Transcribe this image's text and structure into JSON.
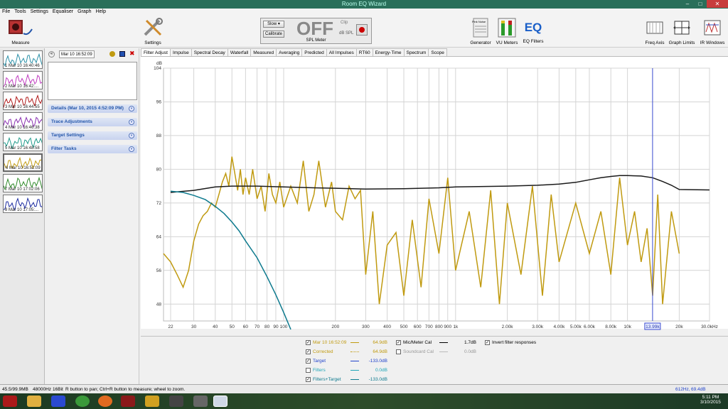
{
  "window": {
    "title": "Room EQ Wizard"
  },
  "menu": [
    "File",
    "Tools",
    "Settings",
    "Equaliser",
    "Graph",
    "Help"
  ],
  "toolbar": {
    "measure": "Measure",
    "settings": "Settings",
    "spl_speed": "Slow",
    "calibrate": "Calibrate",
    "spl_value": "OFF",
    "spl_clip": "Clip",
    "spl_unit": "dB SPL",
    "spl_meter": "SPL Meter",
    "generator": "Generator",
    "vu": "VU Meters",
    "eq": "EQ Filters",
    "freq_axis": "Freq Axis",
    "graph_limits": "Graph Limits",
    "ir_windows": "IR Windows",
    "generator_badge": "Pink Noise",
    "eq_badge": "EQ"
  },
  "measurements": [
    {
      "label": "1 Mar 10 16:40:46",
      "color": "#2a90a8"
    },
    {
      "label": "2 Mar 10 16:42:...",
      "color": "#c03cc0"
    },
    {
      "label": "3 Mar 10 16:44:55",
      "color": "#b01818"
    },
    {
      "label": "4 Mar 10 16:46:38",
      "color": "#8a30b0"
    },
    {
      "label": "5 Mar 10 16:48:58",
      "color": "#1f9a8a"
    },
    {
      "label": "6 Mar 10 16:52:09",
      "color": "#c09a10"
    },
    {
      "label": "7 Mar 10 17:02:06",
      "color": "#2f8a2a"
    },
    {
      "label": "8 Mar 10 17:05:...",
      "color": "#1a2aa0"
    }
  ],
  "panel": {
    "name_value": "Mar 10 16:52:09",
    "sections": [
      "Details  (Mar 10, 2015 4:52:09 PM)",
      "Trace Adjustments",
      "Target Settings",
      "Filter Tasks"
    ]
  },
  "tabs": [
    "Filter Adjust",
    "Impulse",
    "Spectral Decay",
    "Waterfall",
    "Measured",
    "Averaging",
    "Predicted",
    "All Impulses",
    "RT60",
    "Energy-Time",
    "Spectrum",
    "Scope"
  ],
  "chart_data": {
    "type": "line",
    "ylabel": "dB",
    "ylim": [
      44,
      104
    ],
    "yticks": [
      104,
      96,
      88,
      80,
      72,
      64,
      56,
      48
    ],
    "xscale": "log",
    "xlim": [
      20,
      30000
    ],
    "xticks": [
      {
        "v": 22,
        "l": "22"
      },
      {
        "v": 30,
        "l": "30"
      },
      {
        "v": 40,
        "l": "40"
      },
      {
        "v": 50,
        "l": "50"
      },
      {
        "v": 60,
        "l": "60"
      },
      {
        "v": 70,
        "l": "70"
      },
      {
        "v": 80,
        "l": "80"
      },
      {
        "v": 90,
        "l": "90"
      },
      {
        "v": 100,
        "l": "100"
      },
      {
        "v": 200,
        "l": "200"
      },
      {
        "v": 300,
        "l": "300"
      },
      {
        "v": 400,
        "l": "400"
      },
      {
        "v": 500,
        "l": "500"
      },
      {
        "v": 600,
        "l": "600"
      },
      {
        "v": 700,
        "l": "700"
      },
      {
        "v": 800,
        "l": "800"
      },
      {
        "v": 900,
        "l": "900"
      },
      {
        "v": 1000,
        "l": "1k"
      },
      {
        "v": 2000,
        "l": "2.00k"
      },
      {
        "v": 3000,
        "l": "3.00k"
      },
      {
        "v": 4000,
        "l": "4.00k"
      },
      {
        "v": 5000,
        "l": "5.00k"
      },
      {
        "v": 6000,
        "l": "6.00k"
      },
      {
        "v": 8000,
        "l": "8.00k"
      },
      {
        "v": 10000,
        "l": "10k"
      },
      {
        "v": 20000,
        "l": "20k"
      },
      {
        "v": 30000,
        "l": "30.0kHz"
      }
    ],
    "cursor": {
      "x": 13990,
      "label": "13.99k"
    },
    "series": [
      {
        "name": "Mar 10 16:52:09",
        "color": "#c09a10",
        "x": [
          20,
          22,
          24,
          26,
          28,
          30,
          32,
          34,
          36,
          38,
          40,
          42,
          44,
          46,
          48,
          50,
          52,
          54,
          56,
          58,
          60,
          63,
          66,
          70,
          74,
          78,
          82,
          86,
          90,
          95,
          100,
          110,
          120,
          130,
          140,
          150,
          160,
          175,
          190,
          200,
          220,
          240,
          260,
          280,
          300,
          330,
          360,
          400,
          450,
          500,
          560,
          630,
          700,
          800,
          900,
          1000,
          1200,
          1400,
          1600,
          1800,
          2000,
          2400,
          2800,
          3200,
          3600,
          4000,
          5000,
          6000,
          7000,
          8000,
          9000,
          10000,
          11000,
          12000,
          13000,
          14000,
          15000,
          16000,
          18000,
          20000
        ],
        "y": [
          60,
          58,
          55,
          52,
          56,
          63,
          67,
          69,
          70,
          72,
          71,
          74,
          77,
          79,
          76,
          83,
          79,
          75,
          80,
          74,
          78,
          74,
          80,
          73,
          76,
          70,
          79,
          74,
          72,
          77,
          71,
          76,
          72,
          82,
          70,
          74,
          82,
          71,
          77,
          70,
          68,
          76,
          73,
          75,
          55,
          70,
          48,
          62,
          65,
          50,
          68,
          52,
          73,
          60,
          78,
          56,
          70,
          52,
          75,
          48,
          72,
          55,
          76,
          50,
          74,
          58,
          72,
          60,
          70,
          55,
          78,
          62,
          70,
          58,
          66,
          50,
          74,
          48,
          70,
          60
        ]
      },
      {
        "name": "Target",
        "color": "#1a1a1a",
        "x": [
          22,
          30,
          40,
          50,
          70,
          100,
          150,
          200,
          300,
          500,
          800,
          1000,
          2000,
          3000,
          4000,
          5000,
          6000,
          7000,
          8000,
          9000,
          10000,
          12000,
          14000,
          16000,
          18000,
          20000,
          30000
        ],
        "y": [
          74.5,
          75,
          75.8,
          76,
          76,
          75.8,
          75.6,
          75.5,
          75.3,
          75.4,
          75.6,
          75.8,
          76,
          76.2,
          76.5,
          76.9,
          77.5,
          78,
          78.3,
          78.5,
          78.5,
          78.4,
          78,
          77.1,
          76.2,
          75.2,
          75.1
        ]
      },
      {
        "name": "Filters+Target",
        "color": "#0e7a8e",
        "x": [
          22,
          26,
          30,
          35,
          40,
          45,
          50,
          55,
          60,
          70,
          80,
          90,
          100,
          110
        ],
        "y": [
          74.8,
          74.5,
          73.8,
          72.8,
          71.2,
          69.5,
          67.5,
          65.4,
          63,
          59,
          54.5,
          50.2,
          46,
          42
        ]
      }
    ]
  },
  "legend": [
    {
      "label": "Mar 10 16:52:09",
      "value": "64.9dB",
      "color": "#c09a10",
      "checked": true
    },
    {
      "label": "Corrected",
      "value": "64.9dB",
      "color": "#c09a10",
      "checked": true
    },
    {
      "label": "Target",
      "value": "-133.0dB",
      "color": "#2244cc",
      "checked": true
    },
    {
      "label": "Filters",
      "value": "0.0dB",
      "color": "#20a6b8",
      "checked": false
    },
    {
      "label": "Filters+Target",
      "value": "-133.0dB",
      "color": "#0e7a8e",
      "checked": true
    }
  ],
  "legend2": [
    {
      "label": "Mic/Meter Cal",
      "value": "1.7dB",
      "checked": true
    },
    {
      "label": "Soundcard Cal",
      "value": "0.0dB",
      "checked": false
    }
  ],
  "invert_label": "Invert filter responses",
  "status": {
    "memory": "45.5/99.9MB",
    "rate": "48000Hz",
    "bits": "16Bit",
    "hint": "R button to pan; Ctrl+R button to measure; wheel to zoom.",
    "freq": "612Hz,",
    "level": "69.4dB"
  },
  "clock": {
    "time": "5:11 PM",
    "date": "3/10/2015"
  }
}
